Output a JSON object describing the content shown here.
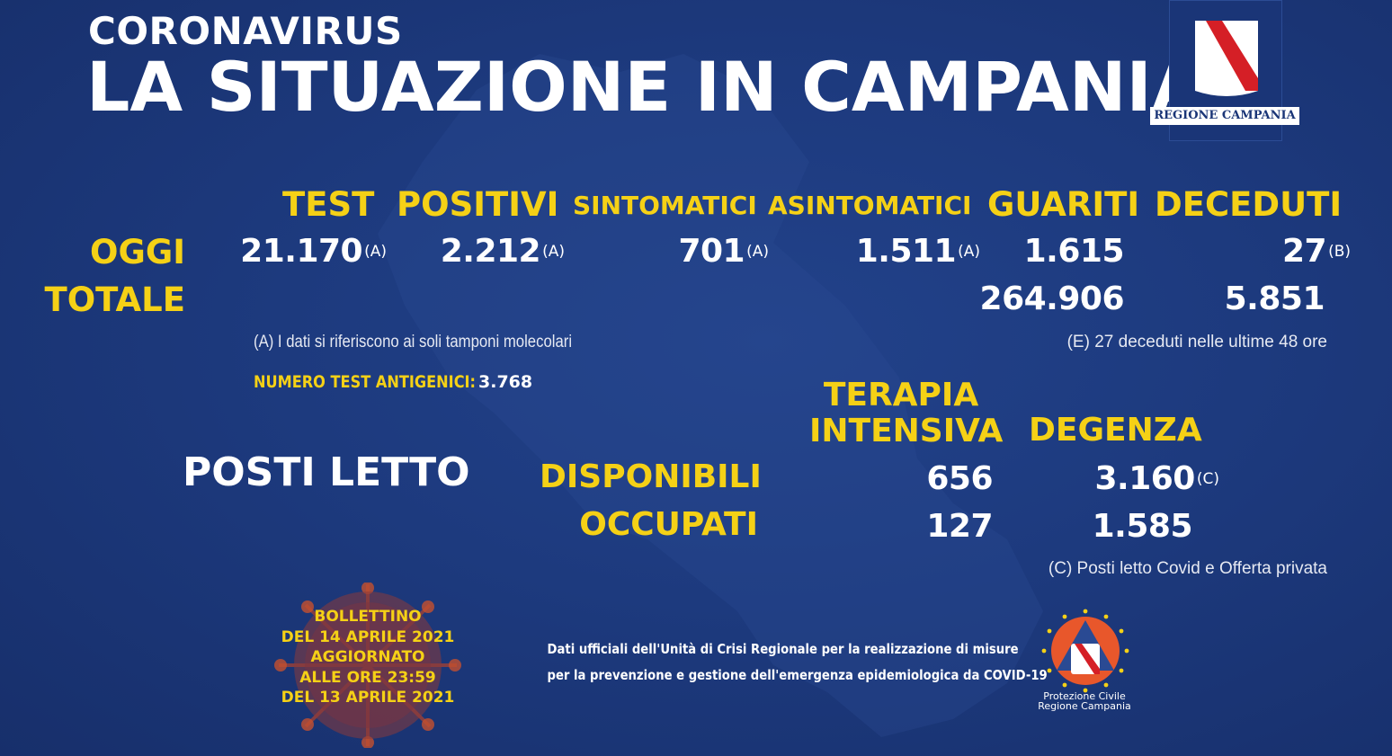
{
  "header": {
    "kicker": "CORONAVIRUS",
    "title": "LA SITUAZIONE IN CAMPANIA"
  },
  "logo_region": {
    "label": "REGIONE CAMPANIA"
  },
  "columns": {
    "test": "TEST",
    "positivi": "POSITIVI",
    "sintomatici": "SINTOMATICI",
    "asintomatici": "ASINTOMATICI",
    "guariti": "GUARITI",
    "deceduti": "DECEDUTI"
  },
  "rows": {
    "oggi_label": "OGGI",
    "totale_label": "TOTALE"
  },
  "oggi": {
    "test": "21.170",
    "test_note": "(A)",
    "positivi": "2.212",
    "positivi_note": "(A)",
    "sintomatici": "701",
    "sintomatici_note": "(A)",
    "asintomatici": "1.511",
    "asintomatici_note": "(A)",
    "guariti": "1.615",
    "deceduti": "27",
    "deceduti_note": "(B)"
  },
  "totale": {
    "guariti": "264.906",
    "deceduti": "5.851"
  },
  "notes": {
    "a": "(A) I dati si riferiscono ai soli tamponi molecolari",
    "e": "(E) 27 deceduti nelle ultime 48 ore",
    "antigen_label": "NUMERO TEST ANTIGENICI:",
    "antigen_value": "3.768",
    "c": "(C) Posti letto Covid e Offerta privata"
  },
  "beds": {
    "title": "POSTI LETTO",
    "col_ti_line1": "TERAPIA",
    "col_ti_line2": "INTENSIVA",
    "col_degenza": "DEGENZA",
    "disponibili_label": "DISPONIBILI",
    "occupati_label": "OCCUPATI",
    "ti_disponibili": "656",
    "ti_occupati": "127",
    "degenza_disponibili": "3.160",
    "degenza_disponibili_note": "(C)",
    "degenza_occupati": "1.585"
  },
  "bulletin": {
    "line1": "BOLLETTINO",
    "line2": "DEL 14 APRILE 2021",
    "line3": "AGGIORNATO",
    "line4": "ALLE ORE 23:59",
    "line5": "DEL 13 APRILE 2021"
  },
  "footer": {
    "line1": "Dati ufficiali dell'Unità di Crisi Regionale per la realizzazione di misure",
    "line2": "per la prevenzione e gestione dell'emergenza epidemiologica da COVID-19"
  },
  "protezione_civile": {
    "line1": "Protezione Civile",
    "line2": "Regione Campania"
  }
}
